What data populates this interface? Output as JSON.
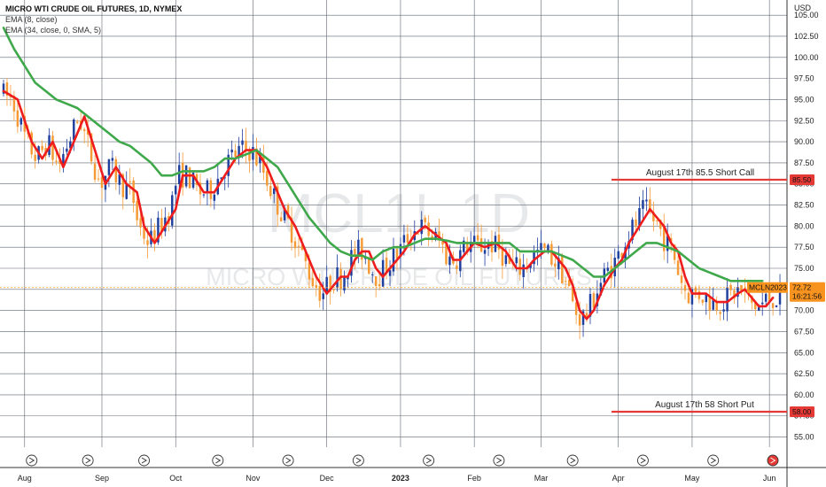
{
  "header": {
    "title": "MICRO WTI CRUDE OIL FUTURES, 1D, NYMEX",
    "indicators": [
      "EMA (8, close)",
      "EMA (34, close, 0, SMA, 5)"
    ]
  },
  "watermark": {
    "symbol": "MCL1!, 1D",
    "name": "MICRO WTI CRUDE OIL FUTURES"
  },
  "colors": {
    "up": "#1f3f9e",
    "down": "#f59a34",
    "ema_fast": "#ee1c1c",
    "ema_slow": "#3ea84a",
    "annotation_line": "#e53935",
    "last_price_tag": "#f7931e",
    "grid": "#5f6670"
  },
  "chart_data": {
    "type": "candlestick",
    "currency": "USD",
    "y_axis_ticks": [
      55.0,
      57.5,
      60.0,
      62.5,
      65.0,
      67.5,
      70.0,
      72.5,
      75.0,
      77.5,
      80.0,
      82.5,
      85.0,
      87.5,
      90.0,
      92.5,
      95.0,
      97.5,
      100.0,
      102.5,
      105.0
    ],
    "ylim": [
      53.8,
      106.8
    ],
    "x_labels": [
      "Aug",
      "Sep",
      "Oct",
      "Nov",
      "Dec",
      "2023",
      "Feb",
      "Mar",
      "Apr",
      "May",
      "Jun"
    ],
    "x_label_positions_bar": [
      6,
      28,
      49,
      71,
      92,
      113,
      134,
      153,
      175,
      196,
      218
    ],
    "bar_count": 222,
    "series": [
      {
        "name": "EMA (8, close)",
        "style": "ema_fast",
        "points": [
          [
            0,
            96
          ],
          [
            4,
            95
          ],
          [
            8,
            90
          ],
          [
            11,
            88
          ],
          [
            14,
            90
          ],
          [
            17,
            87
          ],
          [
            20,
            90
          ],
          [
            23,
            93
          ],
          [
            26,
            89
          ],
          [
            29,
            85
          ],
          [
            32,
            87
          ],
          [
            35,
            85
          ],
          [
            38,
            84
          ],
          [
            40,
            80
          ],
          [
            43,
            78
          ],
          [
            46,
            80
          ],
          [
            49,
            82
          ],
          [
            51,
            86
          ],
          [
            54,
            86
          ],
          [
            57,
            84
          ],
          [
            60,
            84
          ],
          [
            63,
            86
          ],
          [
            66,
            88
          ],
          [
            69,
            89
          ],
          [
            72,
            89
          ],
          [
            75,
            87
          ],
          [
            77,
            85
          ],
          [
            80,
            82
          ],
          [
            83,
            80
          ],
          [
            86,
            77
          ],
          [
            89,
            74
          ],
          [
            92,
            72
          ],
          [
            94,
            73
          ],
          [
            96,
            74
          ],
          [
            98,
            74
          ],
          [
            100,
            76
          ],
          [
            102,
            77
          ],
          [
            104,
            77
          ],
          [
            106,
            75
          ],
          [
            108,
            74
          ],
          [
            110,
            75
          ],
          [
            112,
            76
          ],
          [
            114,
            77
          ],
          [
            117,
            79
          ],
          [
            120,
            80
          ],
          [
            123,
            79
          ],
          [
            126,
            78
          ],
          [
            128,
            76
          ],
          [
            130,
            76
          ],
          [
            132,
            77
          ],
          [
            134,
            78
          ],
          [
            137,
            77.5
          ],
          [
            140,
            78
          ],
          [
            143,
            77
          ],
          [
            146,
            75
          ],
          [
            149,
            75
          ],
          [
            151,
            76
          ],
          [
            154,
            77
          ],
          [
            156,
            77
          ],
          [
            158,
            76
          ],
          [
            160,
            75
          ],
          [
            162,
            73
          ],
          [
            164,
            70
          ],
          [
            166,
            69
          ],
          [
            168,
            70
          ],
          [
            171,
            73
          ],
          [
            174,
            75
          ],
          [
            176,
            76
          ],
          [
            178,
            78
          ],
          [
            181,
            80
          ],
          [
            184,
            82
          ],
          [
            186,
            81
          ],
          [
            188,
            80
          ],
          [
            190,
            78
          ],
          [
            192,
            77
          ],
          [
            194,
            74
          ],
          [
            196,
            72
          ],
          [
            198,
            72
          ],
          [
            200,
            72
          ],
          [
            203,
            71
          ],
          [
            206,
            71
          ],
          [
            209,
            72
          ],
          [
            211,
            72.5
          ],
          [
            213,
            71.5
          ],
          [
            215,
            70.5
          ],
          [
            217,
            70.5
          ],
          [
            219,
            71.5
          ]
        ]
      },
      {
        "name": "EMA (34, close, 0, SMA, 5)",
        "style": "ema_slow",
        "points": [
          [
            0,
            103.5
          ],
          [
            3,
            101
          ],
          [
            6,
            99
          ],
          [
            9,
            97
          ],
          [
            12,
            96
          ],
          [
            15,
            95
          ],
          [
            18,
            94.5
          ],
          [
            21,
            94
          ],
          [
            24,
            93
          ],
          [
            27,
            92
          ],
          [
            30,
            91
          ],
          [
            33,
            90
          ],
          [
            36,
            89.5
          ],
          [
            39,
            88.5
          ],
          [
            42,
            87.5
          ],
          [
            45,
            86
          ],
          [
            48,
            86
          ],
          [
            51,
            86.5
          ],
          [
            54,
            86.5
          ],
          [
            57,
            86.5
          ],
          [
            60,
            87
          ],
          [
            63,
            88
          ],
          [
            66,
            88
          ],
          [
            69,
            88.5
          ],
          [
            72,
            89
          ],
          [
            75,
            88
          ],
          [
            78,
            87
          ],
          [
            81,
            85
          ],
          [
            84,
            83
          ],
          [
            87,
            81
          ],
          [
            90,
            79.5
          ],
          [
            93,
            78
          ],
          [
            96,
            77
          ],
          [
            99,
            76.5
          ],
          [
            102,
            76.5
          ],
          [
            105,
            76
          ],
          [
            108,
            77
          ],
          [
            111,
            77.5
          ],
          [
            114,
            77.5
          ],
          [
            117,
            78
          ],
          [
            120,
            78.5
          ],
          [
            123,
            78.5
          ],
          [
            126,
            78.3
          ],
          [
            129,
            78
          ],
          [
            132,
            78
          ],
          [
            135,
            78
          ],
          [
            138,
            78
          ],
          [
            141,
            78
          ],
          [
            144,
            78
          ],
          [
            147,
            77
          ],
          [
            150,
            77
          ],
          [
            153,
            77
          ],
          [
            156,
            77
          ],
          [
            159,
            76.5
          ],
          [
            162,
            76
          ],
          [
            165,
            75
          ],
          [
            168,
            74
          ],
          [
            171,
            74
          ],
          [
            174,
            75
          ],
          [
            177,
            76
          ],
          [
            180,
            77
          ],
          [
            183,
            78
          ],
          [
            186,
            78
          ],
          [
            189,
            77.5
          ],
          [
            192,
            77
          ],
          [
            195,
            76
          ],
          [
            198,
            75
          ],
          [
            201,
            74.5
          ],
          [
            204,
            74
          ],
          [
            207,
            73.5
          ],
          [
            210,
            73.5
          ],
          [
            213,
            73.5
          ],
          [
            216,
            73.5
          ]
        ]
      }
    ]
  },
  "annotations": {
    "call": {
      "text": "August 17th 85.5 Short Call",
      "price_label": "85.50",
      "value": 85.5
    },
    "put": {
      "text": "August 17th 58 Short Put",
      "price_label": "58.00",
      "value": 58
    }
  },
  "price_axis": {
    "currency_label": "USD",
    "last_price": "72.72",
    "last_price_value": 72.72,
    "contract_label": "MCLN2023",
    "countdown": "16:21:56"
  },
  "events": {
    "icon_name": "dividend-icon",
    "bar_positions": [
      8,
      24,
      40,
      61,
      81,
      101,
      121,
      141,
      162,
      182,
      202,
      222
    ]
  }
}
